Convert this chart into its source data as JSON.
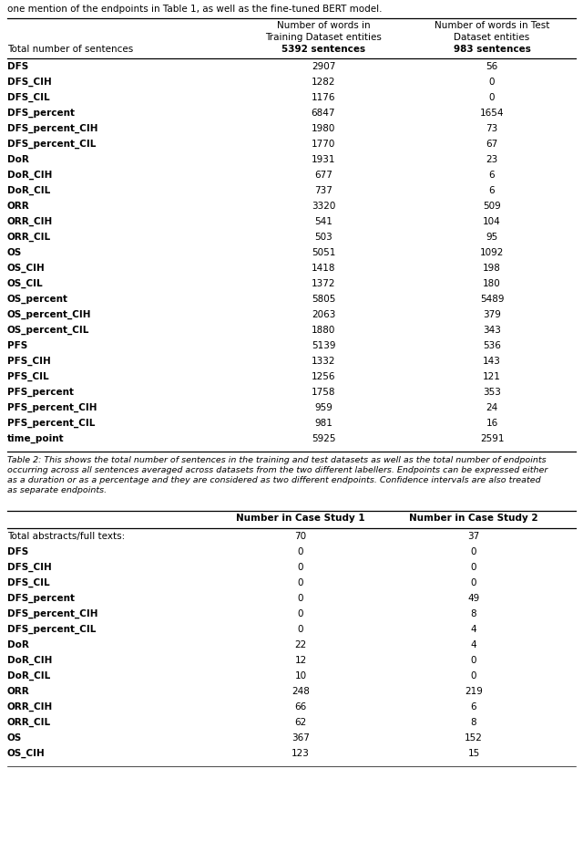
{
  "table1_header_col0": "Total number of sentences",
  "table1_header_col1_lines": [
    "Number of words in",
    "Training Dataset entities",
    "5392 sentences"
  ],
  "table1_header_col2_lines": [
    "Number of words in Test",
    "Dataset entities",
    "983 sentences"
  ],
  "table1_rows": [
    [
      "DFS",
      "2907",
      "56"
    ],
    [
      "DFS_CIH",
      "1282",
      "0"
    ],
    [
      "DFS_CIL",
      "1176",
      "0"
    ],
    [
      "DFS_percent",
      "6847",
      "1654"
    ],
    [
      "DFS_percent_CIH",
      "1980",
      "73"
    ],
    [
      "DFS_percent_CIL",
      "1770",
      "67"
    ],
    [
      "DoR",
      "1931",
      "23"
    ],
    [
      "DoR_CIH",
      "677",
      "6"
    ],
    [
      "DoR_CIL",
      "737",
      "6"
    ],
    [
      "ORR",
      "3320",
      "509"
    ],
    [
      "ORR_CIH",
      "541",
      "104"
    ],
    [
      "ORR_CIL",
      "503",
      "95"
    ],
    [
      "OS",
      "5051",
      "1092"
    ],
    [
      "OS_CIH",
      "1418",
      "198"
    ],
    [
      "OS_CIL",
      "1372",
      "180"
    ],
    [
      "OS_percent",
      "5805",
      "5489"
    ],
    [
      "OS_percent_CIH",
      "2063",
      "379"
    ],
    [
      "OS_percent_CIL",
      "1880",
      "343"
    ],
    [
      "PFS",
      "5139",
      "536"
    ],
    [
      "PFS_CIH",
      "1332",
      "143"
    ],
    [
      "PFS_CIL",
      "1256",
      "121"
    ],
    [
      "PFS_percent",
      "1758",
      "353"
    ],
    [
      "PFS_percent_CIH",
      "959",
      "24"
    ],
    [
      "PFS_percent_CIL",
      "981",
      "16"
    ],
    [
      "time_point",
      "5925",
      "2591"
    ]
  ],
  "table1_caption_lines": [
    "Table 2: This shows the total number of sentences in the training and test datasets as well as the total number of endpoints",
    "occurring across all sentences averaged across datasets from the two different labellers. Endpoints can be expressed either",
    "as a duration or as a percentage and they are considered as two different endpoints. Confidence intervals are also treated",
    "as separate endpoints."
  ],
  "table2_header_col1": "Number in Case Study 1",
  "table2_header_col2": "Number in Case Study 2",
  "table2_rows": [
    [
      "Total abstracts/full texts:",
      "70",
      "37",
      "normal"
    ],
    [
      "DFS",
      "0",
      "0",
      "bold"
    ],
    [
      "DFS_CIH",
      "0",
      "0",
      "bold"
    ],
    [
      "DFS_CIL",
      "0",
      "0",
      "bold"
    ],
    [
      "DFS_percent",
      "0",
      "49",
      "bold"
    ],
    [
      "DFS_percent_CIH",
      "0",
      "8",
      "bold"
    ],
    [
      "DFS_percent_CIL",
      "0",
      "4",
      "bold"
    ],
    [
      "DoR",
      "22",
      "4",
      "bold"
    ],
    [
      "DoR_CIH",
      "12",
      "0",
      "bold"
    ],
    [
      "DoR_CIL",
      "10",
      "0",
      "bold"
    ],
    [
      "ORR",
      "248",
      "219",
      "bold"
    ],
    [
      "ORR_CIH",
      "66",
      "6",
      "bold"
    ],
    [
      "ORR_CIL",
      "62",
      "8",
      "bold"
    ],
    [
      "OS",
      "367",
      "152",
      "bold"
    ],
    [
      "OS_CIH",
      "123",
      "15",
      "bold"
    ]
  ],
  "intro_text": "one mention of the endpoints in Table 1, as well as the fine-tuned BERT model.",
  "intro_fontsize": 7.5,
  "table_fontsize": 7.5,
  "caption_fontsize": 6.8
}
